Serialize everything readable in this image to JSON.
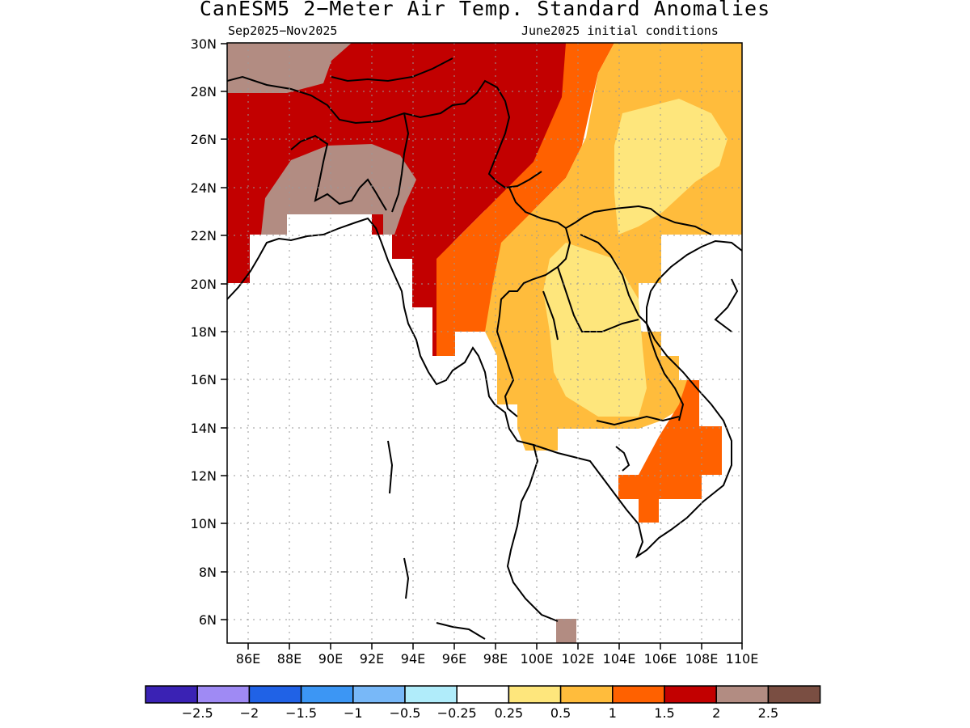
{
  "title": "CanESM5 2−Meter Air Temp. Standard Anomalies",
  "period": "Sep2025−Nov2025",
  "init": "June2025 initial conditions",
  "lon_ticks": [
    "86E",
    "88E",
    "90E",
    "92E",
    "94E",
    "96E",
    "98E",
    "100E",
    "102E",
    "104E",
    "106E",
    "108E",
    "110E"
  ],
  "lat_ticks": [
    "30N",
    "28N",
    "26N",
    "24N",
    "22N",
    "20N",
    "18N",
    "16N",
    "14N",
    "12N",
    "10N",
    "8N",
    "6N"
  ],
  "colorbar": {
    "colors": [
      "#3a22b4",
      "#9f8af4",
      "#2062e6",
      "#3c96f4",
      "#78b8f8",
      "#b0ecfa",
      "#ffffff",
      "#fee67c",
      "#ffbc3c",
      "#ff6100",
      "#c20000",
      "#b28c82",
      "#7a4e42"
    ],
    "labels": [
      "−2.5",
      "−2",
      "−1.5",
      "−1",
      "−0.5",
      "−0.25",
      "0.25",
      "0.5",
      "1",
      "1.5",
      "2",
      "2.5"
    ]
  },
  "legend_colors": {
    "anom_2_to_2.5": "#b28c82",
    "anom_1.5_to_2": "#c20000",
    "anom_1_to_1.5": "#ff6100",
    "anom_0.5_to_1": "#ffbc3c",
    "anom_0.25_to_0.5": "#fee67c",
    "coastline": "#000000"
  }
}
